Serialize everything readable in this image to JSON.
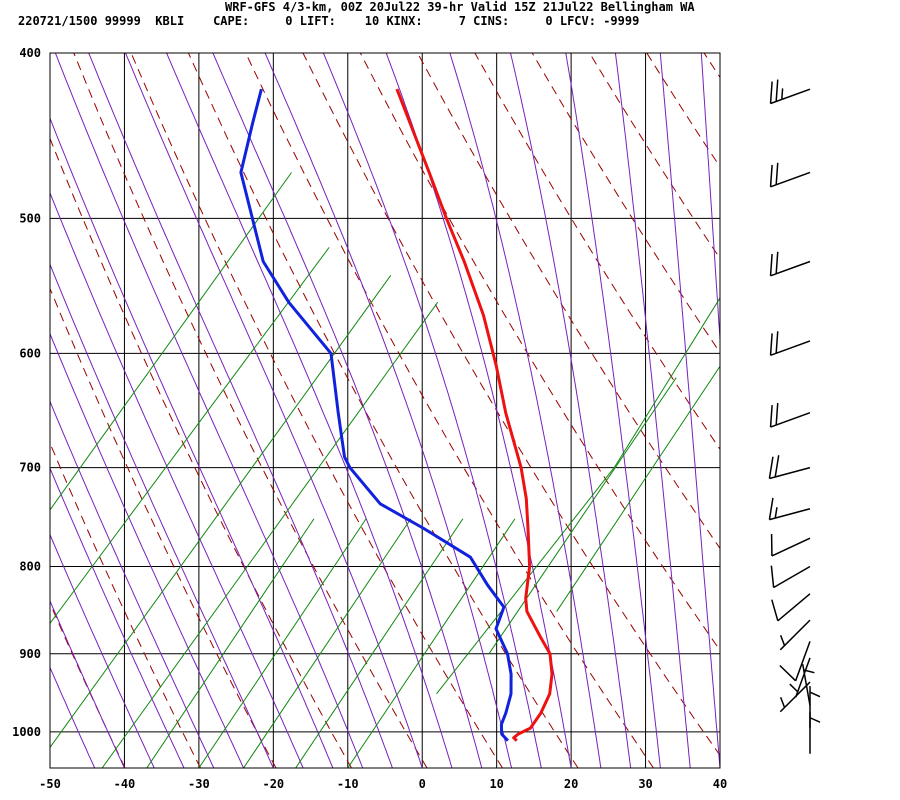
{
  "header": {
    "line1": "WRF-GFS 4/3-km, 00Z 20Jul22 39-hr Valid 15Z 21Jul22 Bellingham WA",
    "line2": "220721/1500 99999  KBLI    CAPE:     0 LIFT:    10 KINX:     7 CINS:     0 LFCV: -9999"
  },
  "colors": {
    "temperature": "#ee1111",
    "dewpoint": "#1122dd",
    "dry_adiabat": "#990000",
    "moist_adiabat": "#7722bb",
    "mixing_ratio": "#118811",
    "grid": "#000000"
  },
  "chart_data": {
    "type": "line",
    "title": "WRF-GFS 4/3-km, 00Z 20Jul22 39-hr Valid 15Z 21Jul22 Bellingham WA",
    "xlabel": "",
    "ylabel": "",
    "x_ticks": [
      "-50",
      "-40",
      "-30",
      "-20",
      "-10",
      "0",
      "10",
      "20",
      "30",
      "40"
    ],
    "y_ticks": [
      "400",
      "500",
      "600",
      "700",
      "800",
      "900",
      "1000"
    ],
    "xlim": [
      -50,
      40
    ],
    "ylim": [
      1050,
      400
    ],
    "y_scale": "log-pressure (hPa)",
    "grid": true,
    "series": [
      {
        "key": "temperature",
        "points": [
          [
            12.0,
            1012
          ],
          [
            11.5,
            1008
          ],
          [
            12.0,
            1003
          ],
          [
            13.5,
            995
          ],
          [
            14.5,
            975
          ],
          [
            15.2,
            950
          ],
          [
            15.0,
            925
          ],
          [
            14.2,
            900
          ],
          [
            12.5,
            880
          ],
          [
            10.0,
            850
          ],
          [
            9.5,
            835
          ],
          [
            9.2,
            800
          ],
          [
            8.0,
            760
          ],
          [
            7.0,
            730
          ],
          [
            5.5,
            700
          ],
          [
            2.0,
            650
          ],
          [
            -0.5,
            610
          ],
          [
            -3.5,
            570
          ],
          [
            -7.5,
            530
          ],
          [
            -11.0,
            500
          ],
          [
            -14.5,
            470
          ],
          [
            -21.0,
            420
          ]
        ]
      },
      {
        "key": "dewpoint",
        "points": [
          [
            10.8,
            1012
          ],
          [
            9.8,
            1003
          ],
          [
            9.5,
            990
          ],
          [
            9.8,
            975
          ],
          [
            10.0,
            950
          ],
          [
            9.5,
            925
          ],
          [
            8.5,
            900
          ],
          [
            6.3,
            870
          ],
          [
            6.5,
            860
          ],
          [
            6.8,
            845
          ],
          [
            4.0,
            820
          ],
          [
            1.0,
            790
          ],
          [
            -6.0,
            760
          ],
          [
            -12.5,
            735
          ],
          [
            -17.5,
            700
          ],
          [
            -18.5,
            690
          ],
          [
            -20.5,
            650
          ],
          [
            -23.0,
            600
          ],
          [
            -30.0,
            560
          ],
          [
            -34.5,
            530
          ],
          [
            -39.8,
            470
          ],
          [
            -39.5,
            440
          ],
          [
            -39.2,
            420
          ]
        ]
      }
    ],
    "mixing_ratio_lines": [
      [
        [
          -37.0,
          1050
        ],
        [
          -21.0,
          750
        ]
      ],
      [
        [
          -30.0,
          1050
        ],
        [
          -14.0,
          750
        ]
      ],
      [
        [
          -24.0,
          1050
        ],
        [
          -8.0,
          750
        ]
      ],
      [
        [
          -17.0,
          1050
        ],
        [
          -1.0,
          750
        ]
      ],
      [
        [
          -10.0,
          1050
        ],
        [
          6.0,
          750
        ]
      ],
      [
        [
          -43.0,
          1050
        ],
        [
          -10.0,
          560
        ]
      ],
      [
        [
          -52.0,
          1050
        ],
        [
          -17.0,
          540
        ]
      ],
      [
        [
          -56.0,
          900
        ],
        [
          -26.0,
          520
        ]
      ],
      [
        [
          -58.0,
          760
        ],
        [
          -33.0,
          470
        ]
      ],
      [
        [
          0.0,
          950
        ],
        [
          18.0,
          700
        ]
      ],
      [
        [
          6.0,
          900
        ],
        [
          24.0,
          620
        ]
      ],
      [
        [
          14.0,
          850
        ],
        [
          32.0,
          580
        ]
      ],
      [
        [
          18.0,
          700
        ],
        [
          36.0,
          460
        ]
      ]
    ],
    "wind_barbs": [
      {
        "pressure": 420,
        "direction": 250,
        "speed": 25
      },
      {
        "pressure": 470,
        "direction": 250,
        "speed": 20
      },
      {
        "pressure": 530,
        "direction": 250,
        "speed": 20
      },
      {
        "pressure": 590,
        "direction": 250,
        "speed": 20
      },
      {
        "pressure": 650,
        "direction": 250,
        "speed": 20
      },
      {
        "pressure": 700,
        "direction": 255,
        "speed": 20
      },
      {
        "pressure": 740,
        "direction": 255,
        "speed": 15
      },
      {
        "pressure": 770,
        "direction": 245,
        "speed": 10
      },
      {
        "pressure": 800,
        "direction": 240,
        "speed": 10
      },
      {
        "pressure": 830,
        "direction": 230,
        "speed": 10
      },
      {
        "pressure": 860,
        "direction": 225,
        "speed": 5
      },
      {
        "pressure": 885,
        "direction": 200,
        "speed": 10
      },
      {
        "pressure": 905,
        "direction": 200,
        "speed": 5
      },
      {
        "pressure": 935,
        "direction": 225,
        "speed": 5
      },
      {
        "pressure": 965,
        "direction": 350,
        "speed": 5
      },
      {
        "pressure": 995,
        "direction": 360,
        "speed": 5
      },
      {
        "pressure": 1030,
        "direction": 360,
        "speed": 5
      }
    ]
  }
}
